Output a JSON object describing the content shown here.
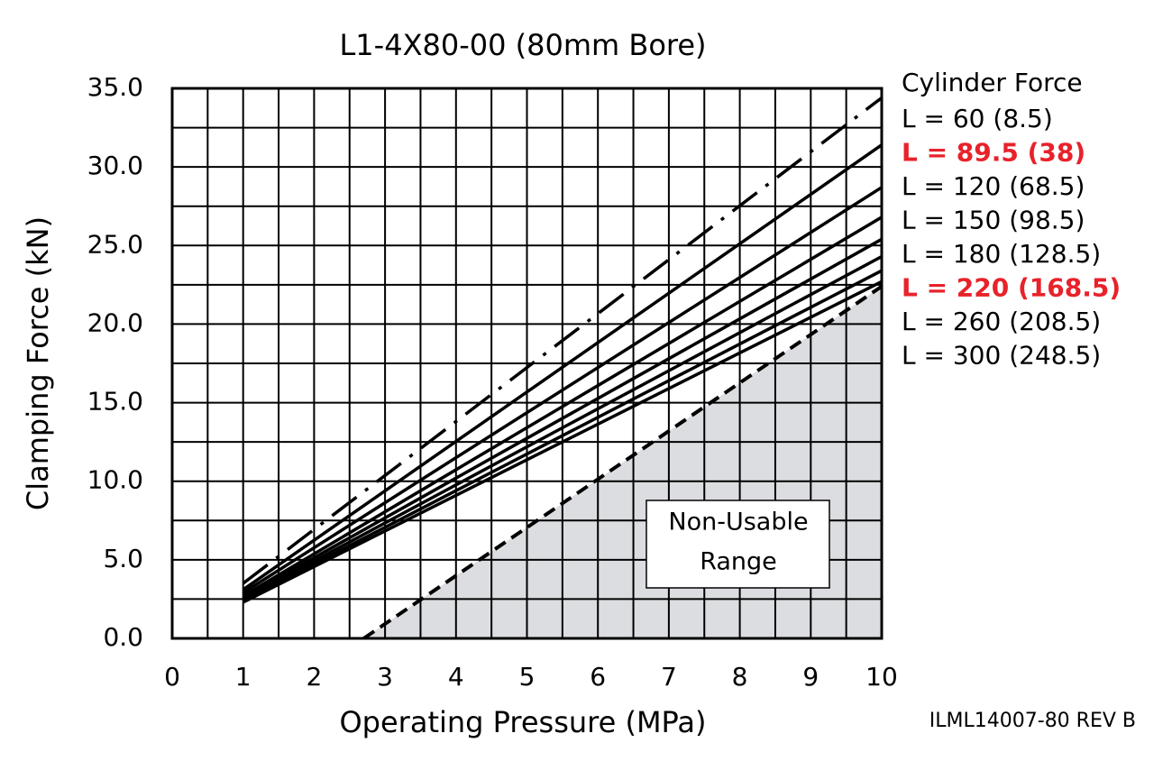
{
  "chart_data": {
    "type": "line",
    "title": "L1-4X80-00 (80mm Bore)",
    "x_label": "Operating Pressure (MPa)",
    "y_label": "Clamping Force (kN)",
    "legend_title": "Cylinder Force",
    "footer": "ILML14007-80 REV B",
    "x": [
      1,
      10
    ],
    "series": [
      {
        "name": "L = 60 (8.5)",
        "color": "#000000",
        "label_color": "#000000",
        "dash": "dashdot",
        "values": [
          3.5,
          34.4
        ]
      },
      {
        "name": "L = 89.5 (38)",
        "color": "#000000",
        "label_color": "#e8222a",
        "bold": true,
        "values": [
          3.1,
          31.4
        ]
      },
      {
        "name": "L = 120 (68.5)",
        "color": "#000000",
        "label_color": "#000000",
        "values": [
          2.9,
          28.7
        ]
      },
      {
        "name": "L = 150 (98.5)",
        "color": "#000000",
        "label_color": "#000000",
        "values": [
          2.7,
          26.8
        ]
      },
      {
        "name": "L = 180 (128.5)",
        "color": "#000000",
        "label_color": "#000000",
        "values": [
          2.6,
          25.4
        ]
      },
      {
        "name": "L = 220 (168.5)",
        "color": "#000000",
        "label_color": "#e8222a",
        "bold": true,
        "values": [
          2.5,
          24.3
        ]
      },
      {
        "name": "L = 260 (208.5)",
        "color": "#000000",
        "label_color": "#000000",
        "values": [
          2.4,
          23.4
        ]
      },
      {
        "name": "L = 300 (248.5)",
        "color": "#000000",
        "label_color": "#000000",
        "values": [
          2.3,
          22.7
        ]
      }
    ],
    "non_usable_region": {
      "label": [
        "Non-Usable",
        "Range"
      ],
      "x": [
        2.7,
        10
      ],
      "values": [
        0,
        22.4
      ],
      "color": "#dcdde0"
    },
    "xlim": [
      0,
      10
    ],
    "ylim": [
      0,
      35
    ],
    "xticks": [
      0,
      1,
      2,
      3,
      4,
      5,
      6,
      7,
      8,
      9,
      10
    ],
    "yticks": [
      {
        "value": 0,
        "label": "0.0"
      },
      {
        "value": 5,
        "label": "5.0"
      },
      {
        "value": 10,
        "label": "10.0"
      },
      {
        "value": 15,
        "label": "15.0"
      },
      {
        "value": 20,
        "label": "20.0"
      },
      {
        "value": 25,
        "label": "25.0"
      },
      {
        "value": 30,
        "label": "30.0"
      },
      {
        "value": 35,
        "label": "35.0"
      }
    ],
    "xgrid": [
      0.5,
      1,
      1.5,
      2,
      2.5,
      3,
      3.5,
      4,
      4.5,
      5,
      5.5,
      6,
      6.5,
      7,
      7.5,
      8,
      8.5,
      9,
      9.5
    ],
    "ygrid": [
      2.5,
      5,
      7.5,
      10,
      12.5,
      15,
      17.5,
      20,
      22.5,
      25,
      27.5,
      30,
      32.5
    ]
  }
}
